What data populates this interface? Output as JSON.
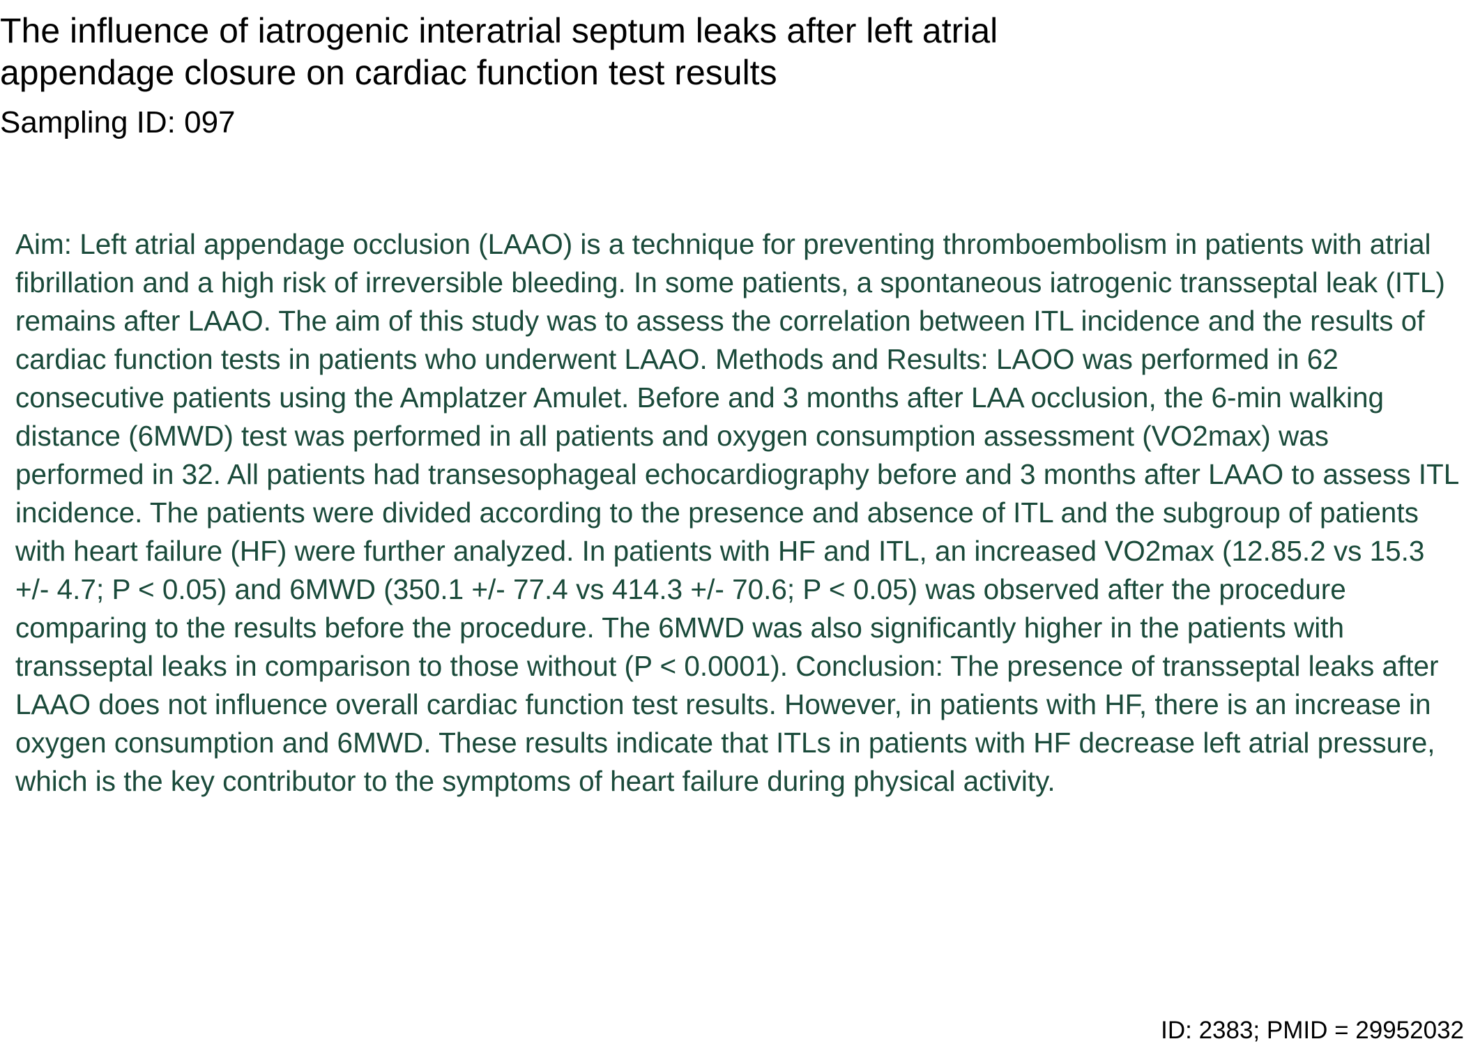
{
  "document": {
    "title": "The influence of iatrogenic interatrial septum leaks after left atrial appendage closure on cardiac function test results",
    "sampling_id": "Sampling ID: 097",
    "abstract": "Aim: Left atrial appendage occlusion (LAAO) is a technique for preventing thromboembolism in patients with atrial fibrillation and a high risk of irreversible bleeding. In some patients, a spontaneous iatrogenic transseptal leak (ITL) remains after LAAO. The aim of this study was to assess the correlation between ITL incidence and the results of cardiac function tests in patients who underwent LAAO. Methods and Results: LAOO was performed in 62 consecutive patients using the Amplatzer Amulet. Before and 3 months after LAA occlusion, the 6-min walking distance (6MWD) test was performed in all patients and oxygen consumption assessment (VO2max) was performed in 32. All patients had transesophageal echocardiography before and 3 months after LAAO to assess ITL incidence. The patients were divided according to the presence and absence of ITL and the subgroup of patients with heart failure (HF) were further analyzed. In patients with HF and ITL, an increased VO2max (12.85.2 vs 15.3 +/- 4.7; P < 0.05) and 6MWD (350.1 +/- 77.4 vs 414.3 +/- 70.6; P < 0.05) was observed after the procedure comparing to the results before the procedure. The 6MWD was also significantly higher in the patients with transseptal leaks in comparison to those without (P < 0.0001). Conclusion: The presence of transseptal leaks after LAAO does not influence overall cardiac function test results. However, in patients with HF, there is an increase in oxygen consumption and 6MWD. These results indicate that ITLs in patients with HF decrease left atrial pressure, which is the key contributor to the symptoms of heart failure during physical activity.",
    "footer_id": "ID: 2383; PMID = 29952032"
  },
  "colors": {
    "title_text": "#000000",
    "abstract_text": "#1a4a3a",
    "background": "#ffffff"
  }
}
